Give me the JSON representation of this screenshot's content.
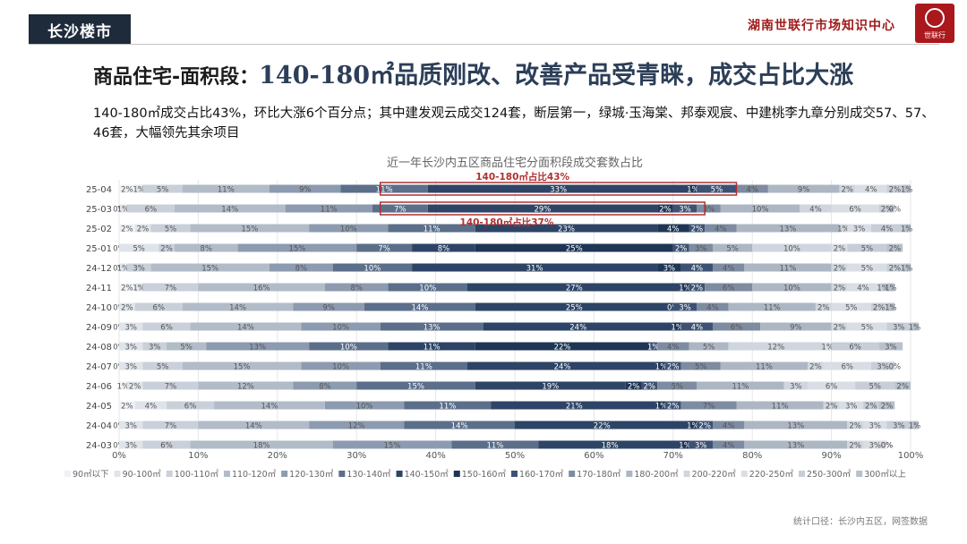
{
  "header": {
    "city_tag": "长沙楼市",
    "brand_text": "湖南世联行市场知识中心",
    "logo_text": "世联行"
  },
  "headline": {
    "prefix": "商品住宅-面积段：",
    "main": "140-180㎡品质刚改、改善产品受青睐，成交占比大涨"
  },
  "subtitle": "140-180㎡成交占比43%，环比大涨6个百分点；其中建发观云成交124套，断层第一，绿城·玉海棠、邦泰观宸、中建桃李九章分别成交57、57、46套，大幅领先其余项目",
  "source_note": "统计口径：长沙内五区，网签数据",
  "colors": {
    "brand_red": "#a9181c",
    "highlight_box": "#b03030",
    "segment_palette": [
      "#eef1f5",
      "#dfe4ea",
      "#c9d0d9",
      "#b2bcc8",
      "#8d9bb0",
      "#5b6e8a",
      "#2d4466",
      "#1e3555",
      "#3d5273",
      "#7e8ca1",
      "#adb7c4",
      "#cfd6de",
      "#d9dee5",
      "#c7ced8",
      "#b8c1cc",
      "#a4afbd",
      "#dfe3e9"
    ]
  },
  "chart_data": {
    "type": "bar",
    "orientation": "horizontal-stacked-100",
    "title": "近一年长沙内五区商品住宅分面积段成交套数占比",
    "categories": [
      "25-04",
      "25-03",
      "25-02",
      "25-01",
      "24-12",
      "24-11",
      "24-10",
      "24-09",
      "24-08",
      "24-07",
      "24-06",
      "24-05",
      "24-04",
      "24-03"
    ],
    "xlim": [
      0,
      100
    ],
    "x_ticks": [
      "0%",
      "10%",
      "20%",
      "30%",
      "40%",
      "50%",
      "60%",
      "70%",
      "80%",
      "90%",
      "100%"
    ],
    "legend_position": "bottom",
    "series": [
      {
        "name": "90㎡以下",
        "values": [
          2,
          0,
          2,
          0,
          0,
          2,
          0,
          0,
          0,
          0,
          1,
          2,
          0,
          0
        ]
      },
      {
        "name": "90-100㎡",
        "values": [
          1,
          1,
          2,
          5,
          1,
          1,
          2,
          3,
          3,
          3,
          2,
          4,
          3,
          3
        ]
      },
      {
        "name": "100-110㎡",
        "values": [
          5,
          6,
          5,
          2,
          3,
          7,
          6,
          6,
          3,
          5,
          7,
          6,
          7,
          6
        ]
      },
      {
        "name": "110-120㎡",
        "values": [
          11,
          14,
          15,
          8,
          15,
          16,
          14,
          14,
          5,
          15,
          12,
          14,
          14,
          18
        ]
      },
      {
        "name": "120-130㎡",
        "values": [
          9,
          11,
          10,
          15,
          8,
          8,
          9,
          10,
          13,
          10,
          8,
          10,
          12,
          15
        ]
      },
      {
        "name": "130-140㎡",
        "values": [
          11,
          7,
          11,
          7,
          10,
          10,
          14,
          13,
          10,
          11,
          15,
          11,
          14,
          11
        ]
      },
      {
        "name": "140-150㎡",
        "values": [
          33,
          29,
          23,
          8,
          31,
          27,
          25,
          24,
          11,
          24,
          19,
          21,
          22,
          18
        ]
      },
      {
        "name": "150-160㎡",
        "values": [
          1,
          2,
          4,
          25,
          3,
          1,
          0,
          1,
          22,
          1,
          2,
          1,
          1,
          1
        ]
      },
      {
        "name": "160-170㎡",
        "values": [
          5,
          3,
          2,
          2,
          4,
          2,
          3,
          4,
          1,
          2,
          2,
          2,
          2,
          3
        ]
      },
      {
        "name": "170-180㎡",
        "values": [
          4,
          3,
          4,
          3,
          4,
          6,
          4,
          6,
          4,
          5,
          5,
          7,
          4,
          4
        ]
      },
      {
        "name": "180-200㎡",
        "values": [
          9,
          10,
          13,
          5,
          11,
          10,
          11,
          9,
          5,
          11,
          11,
          11,
          13,
          13
        ]
      },
      {
        "name": "200-220㎡",
        "values": [
          2,
          4,
          1,
          10,
          2,
          2,
          2,
          2,
          12,
          2,
          3,
          2,
          2,
          2
        ]
      },
      {
        "name": "220-250㎡",
        "values": [
          4,
          6,
          3,
          2,
          5,
          4,
          5,
          5,
          1,
          6,
          6,
          3,
          3,
          3
        ]
      },
      {
        "name": "250-300㎡",
        "values": [
          2,
          2,
          4,
          5,
          2,
          1,
          2,
          3,
          6,
          3,
          5,
          2,
          3,
          0
        ]
      },
      {
        "name": "300㎡以上",
        "values": [
          1,
          0,
          1,
          2,
          1,
          1,
          1,
          1,
          3,
          0,
          2,
          2,
          1,
          0
        ]
      }
    ],
    "annotations": [
      {
        "text": "140-180㎡占比43%",
        "category": "25-04",
        "range": [
          33,
          78
        ]
      },
      {
        "text": "140-180㎡占比37%",
        "category": "25-03",
        "range": [
          33,
          74
        ]
      }
    ]
  }
}
